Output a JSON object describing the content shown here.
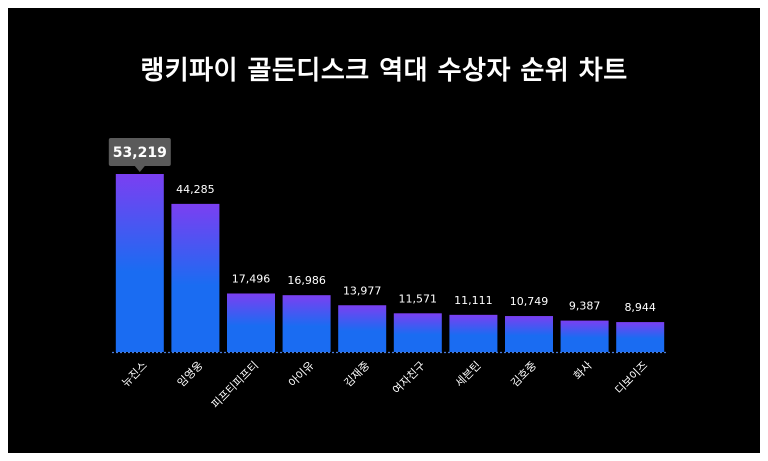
{
  "chart_data": {
    "type": "bar",
    "title": "랭키파이 골든디스크 역대 수상자 순위 차트",
    "categories": [
      "뉴진스",
      "임영웅",
      "피프티피프티",
      "아이유",
      "김재중",
      "여자친구",
      "세븐틴",
      "김호중",
      "화사",
      "디보이즈"
    ],
    "values": [
      53219,
      44285,
      17496,
      16986,
      13977,
      11571,
      11111,
      10749,
      9387,
      8944
    ],
    "value_labels": [
      "53,219",
      "44,285",
      "17,496",
      "16,986",
      "13,977",
      "11,571",
      "11,111",
      "10,749",
      "9,387",
      "8,944"
    ],
    "highlight_index": 0,
    "xlabel": "",
    "ylabel": "",
    "ylim": [
      0,
      53219
    ],
    "grid": false,
    "legend": "none",
    "colors": {
      "background": "#000000",
      "bar_top": "#7b3ff2",
      "bar_bottom": "#1a6cf2",
      "text": "#ffffff",
      "highlight_badge": "#5a5a5a",
      "baseline": "#4a7bd8"
    }
  }
}
